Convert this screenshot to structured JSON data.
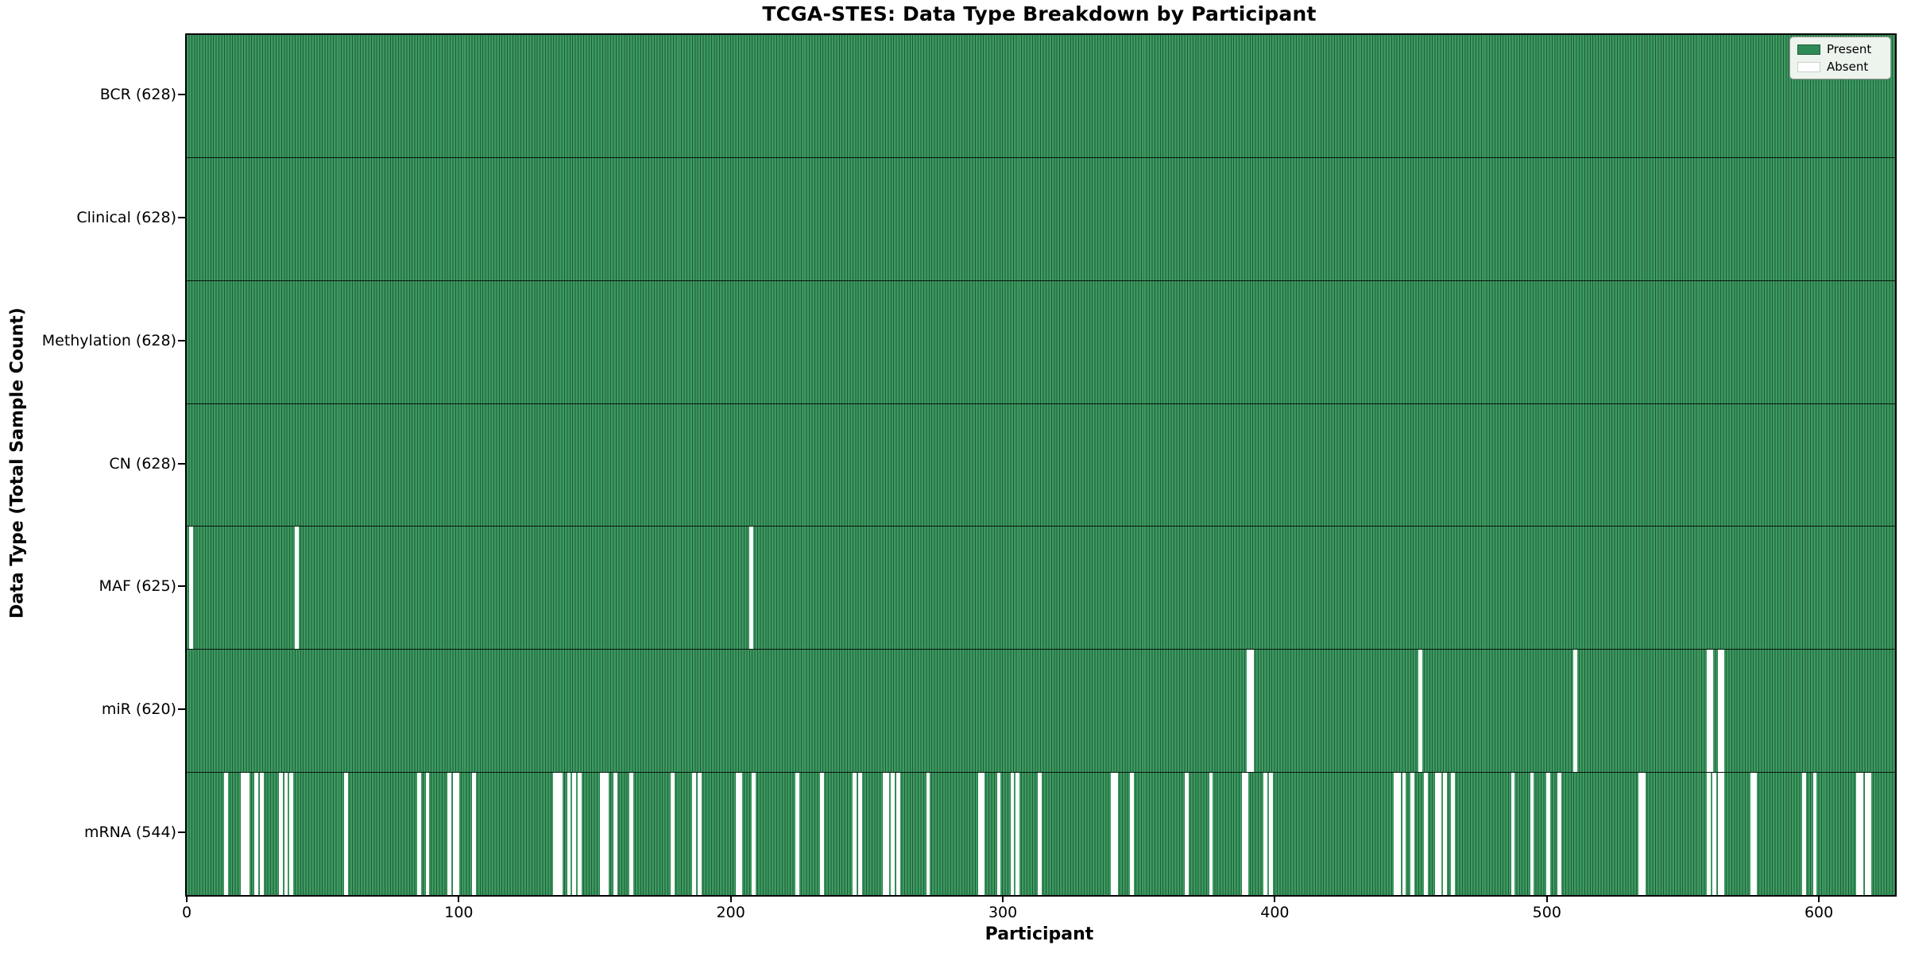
{
  "title": "TCGA-STES: Data Type Breakdown by Participant",
  "colors": {
    "present": "#2e8b57",
    "present_fill": "#3d9a60",
    "bar_edge": "#1e5c3a",
    "absent": "#ffffff",
    "row_divider": "#000000",
    "legend_background": "#edf3ed"
  },
  "chart_data": {
    "type": "heatmap",
    "title": "TCGA-STES: Data Type Breakdown by Participant",
    "xlabel": "Participant",
    "ylabel": "Data Type (Total Sample Count)",
    "x_range": [
      0,
      628
    ],
    "x_ticks": [
      0,
      100,
      200,
      300,
      400,
      500,
      600
    ],
    "n_participants": 628,
    "grid": false,
    "legend_position": "upper right",
    "legend_labels": [
      "Present",
      "Absent"
    ],
    "value_encoding": {
      "present": "green cell",
      "absent": "white cell"
    },
    "rows": [
      {
        "name": "BCR",
        "label": "BCR (628)",
        "present_count": 628,
        "absent_participants": []
      },
      {
        "name": "Clinical",
        "label": "Clinical (628)",
        "present_count": 628,
        "absent_participants": []
      },
      {
        "name": "Methylation",
        "label": "Methylation (628)",
        "present_count": 628,
        "absent_participants": []
      },
      {
        "name": "CN",
        "label": "CN (628)",
        "present_count": 628,
        "absent_participants": []
      },
      {
        "name": "MAF",
        "label": "MAF (625)",
        "present_count": 625,
        "absent_participants": [
          1,
          40,
          207
        ]
      },
      {
        "name": "miR",
        "label": "miR (620)",
        "present_count": 620,
        "absent_participants": [
          390,
          391,
          453,
          510,
          559,
          560,
          563,
          564
        ]
      },
      {
        "name": "mRNA",
        "label": "mRNA (544)",
        "present_count": 544,
        "absent_participants": [
          14,
          20,
          21,
          22,
          25,
          27,
          34,
          36,
          38,
          58,
          85,
          88,
          96,
          98,
          99,
          105,
          135,
          136,
          137,
          140,
          142,
          144,
          152,
          153,
          154,
          157,
          163,
          178,
          186,
          188,
          202,
          203,
          208,
          224,
          233,
          245,
          247,
          256,
          257,
          259,
          261,
          272,
          291,
          292,
          298,
          303,
          305,
          313,
          340,
          341,
          347,
          367,
          376,
          388,
          389,
          396,
          398,
          444,
          445,
          447,
          450,
          455,
          459,
          460,
          462,
          465,
          487,
          494,
          500,
          504,
          534,
          535,
          559,
          561,
          563,
          564,
          575,
          576,
          594,
          598,
          614,
          615,
          617,
          618
        ]
      }
    ]
  }
}
